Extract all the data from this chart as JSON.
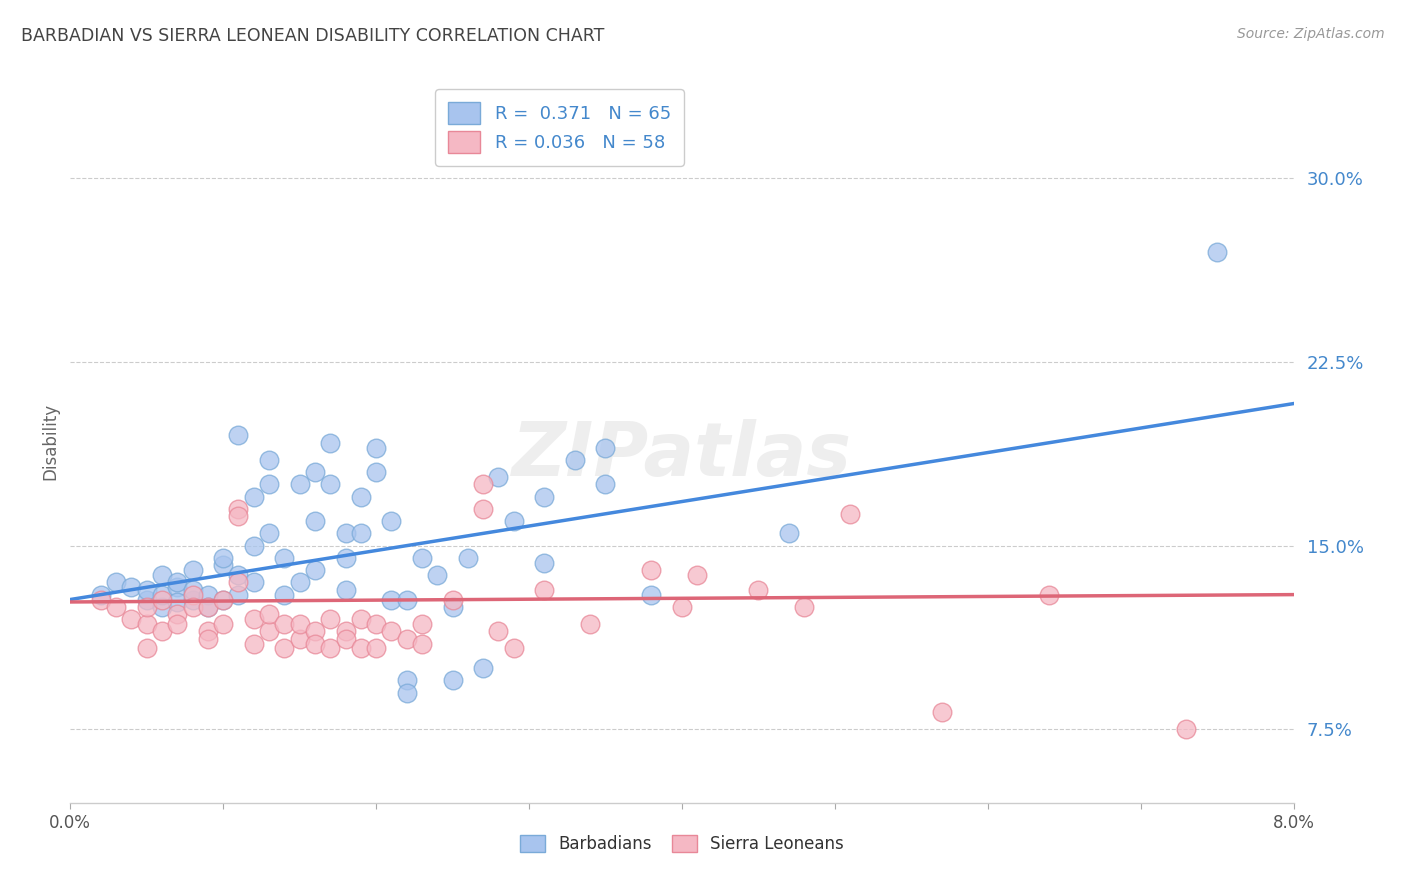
{
  "title": "BARBADIAN VS SIERRA LEONEAN DISABILITY CORRELATION CHART",
  "source": "Source: ZipAtlas.com",
  "ylabel": "Disability",
  "ytick_labels": [
    "7.5%",
    "15.0%",
    "22.5%",
    "30.0%"
  ],
  "ytick_values": [
    0.075,
    0.15,
    0.225,
    0.3
  ],
  "xlim": [
    0.0,
    0.08
  ],
  "ylim": [
    0.045,
    0.34
  ],
  "legend_blue_R": "0.371",
  "legend_blue_N": "65",
  "legend_pink_R": "0.036",
  "legend_pink_N": "58",
  "legend_label_blue": "Barbadians",
  "legend_label_pink": "Sierra Leoneans",
  "blue_color": "#a8c4ee",
  "pink_color": "#f5b8c4",
  "blue_edge_color": "#7aaad8",
  "pink_edge_color": "#e88898",
  "blue_line_color": "#4488dd",
  "pink_line_color": "#dd6677",
  "blue_scatter": [
    [
      0.002,
      0.13
    ],
    [
      0.003,
      0.135
    ],
    [
      0.004,
      0.133
    ],
    [
      0.005,
      0.128
    ],
    [
      0.005,
      0.132
    ],
    [
      0.006,
      0.125
    ],
    [
      0.006,
      0.138
    ],
    [
      0.006,
      0.13
    ],
    [
      0.007,
      0.133
    ],
    [
      0.007,
      0.127
    ],
    [
      0.007,
      0.135
    ],
    [
      0.008,
      0.128
    ],
    [
      0.008,
      0.132
    ],
    [
      0.008,
      0.14
    ],
    [
      0.009,
      0.13
    ],
    [
      0.009,
      0.125
    ],
    [
      0.01,
      0.142
    ],
    [
      0.01,
      0.128
    ],
    [
      0.01,
      0.145
    ],
    [
      0.011,
      0.13
    ],
    [
      0.011,
      0.138
    ],
    [
      0.011,
      0.195
    ],
    [
      0.012,
      0.15
    ],
    [
      0.012,
      0.135
    ],
    [
      0.012,
      0.17
    ],
    [
      0.013,
      0.155
    ],
    [
      0.013,
      0.185
    ],
    [
      0.013,
      0.175
    ],
    [
      0.014,
      0.13
    ],
    [
      0.014,
      0.145
    ],
    [
      0.015,
      0.175
    ],
    [
      0.015,
      0.135
    ],
    [
      0.016,
      0.18
    ],
    [
      0.016,
      0.16
    ],
    [
      0.016,
      0.14
    ],
    [
      0.017,
      0.192
    ],
    [
      0.017,
      0.175
    ],
    [
      0.018,
      0.155
    ],
    [
      0.018,
      0.145
    ],
    [
      0.018,
      0.132
    ],
    [
      0.019,
      0.155
    ],
    [
      0.019,
      0.17
    ],
    [
      0.02,
      0.19
    ],
    [
      0.02,
      0.18
    ],
    [
      0.021,
      0.128
    ],
    [
      0.021,
      0.16
    ],
    [
      0.022,
      0.095
    ],
    [
      0.022,
      0.09
    ],
    [
      0.022,
      0.128
    ],
    [
      0.023,
      0.145
    ],
    [
      0.024,
      0.138
    ],
    [
      0.025,
      0.125
    ],
    [
      0.025,
      0.095
    ],
    [
      0.026,
      0.145
    ],
    [
      0.027,
      0.1
    ],
    [
      0.028,
      0.178
    ],
    [
      0.029,
      0.16
    ],
    [
      0.031,
      0.17
    ],
    [
      0.031,
      0.143
    ],
    [
      0.033,
      0.185
    ],
    [
      0.035,
      0.19
    ],
    [
      0.035,
      0.175
    ],
    [
      0.038,
      0.13
    ],
    [
      0.047,
      0.155
    ],
    [
      0.075,
      0.27
    ]
  ],
  "pink_scatter": [
    [
      0.002,
      0.128
    ],
    [
      0.003,
      0.125
    ],
    [
      0.004,
      0.12
    ],
    [
      0.005,
      0.118
    ],
    [
      0.005,
      0.125
    ],
    [
      0.005,
      0.108
    ],
    [
      0.006,
      0.128
    ],
    [
      0.006,
      0.115
    ],
    [
      0.007,
      0.122
    ],
    [
      0.007,
      0.118
    ],
    [
      0.008,
      0.13
    ],
    [
      0.008,
      0.125
    ],
    [
      0.009,
      0.115
    ],
    [
      0.009,
      0.112
    ],
    [
      0.009,
      0.125
    ],
    [
      0.01,
      0.118
    ],
    [
      0.01,
      0.128
    ],
    [
      0.011,
      0.165
    ],
    [
      0.011,
      0.162
    ],
    [
      0.011,
      0.135
    ],
    [
      0.012,
      0.12
    ],
    [
      0.012,
      0.11
    ],
    [
      0.013,
      0.115
    ],
    [
      0.013,
      0.122
    ],
    [
      0.014,
      0.118
    ],
    [
      0.014,
      0.108
    ],
    [
      0.015,
      0.112
    ],
    [
      0.015,
      0.118
    ],
    [
      0.016,
      0.115
    ],
    [
      0.016,
      0.11
    ],
    [
      0.017,
      0.12
    ],
    [
      0.017,
      0.108
    ],
    [
      0.018,
      0.115
    ],
    [
      0.018,
      0.112
    ],
    [
      0.019,
      0.12
    ],
    [
      0.019,
      0.108
    ],
    [
      0.02,
      0.118
    ],
    [
      0.02,
      0.108
    ],
    [
      0.021,
      0.115
    ],
    [
      0.022,
      0.112
    ],
    [
      0.023,
      0.118
    ],
    [
      0.023,
      0.11
    ],
    [
      0.025,
      0.128
    ],
    [
      0.027,
      0.175
    ],
    [
      0.027,
      0.165
    ],
    [
      0.028,
      0.115
    ],
    [
      0.029,
      0.108
    ],
    [
      0.031,
      0.132
    ],
    [
      0.034,
      0.118
    ],
    [
      0.038,
      0.14
    ],
    [
      0.04,
      0.125
    ],
    [
      0.041,
      0.138
    ],
    [
      0.045,
      0.132
    ],
    [
      0.048,
      0.125
    ],
    [
      0.051,
      0.163
    ],
    [
      0.057,
      0.082
    ],
    [
      0.064,
      0.13
    ],
    [
      0.073,
      0.075
    ]
  ],
  "blue_line_x": [
    0.0,
    0.08
  ],
  "blue_line_y": [
    0.128,
    0.208
  ],
  "pink_line_x": [
    0.0,
    0.08
  ],
  "pink_line_y": [
    0.127,
    0.13
  ],
  "background_color": "#ffffff",
  "grid_color": "#cccccc",
  "title_color": "#444444",
  "tick_color_blue": "#4488cc",
  "watermark": "ZIPatlas"
}
